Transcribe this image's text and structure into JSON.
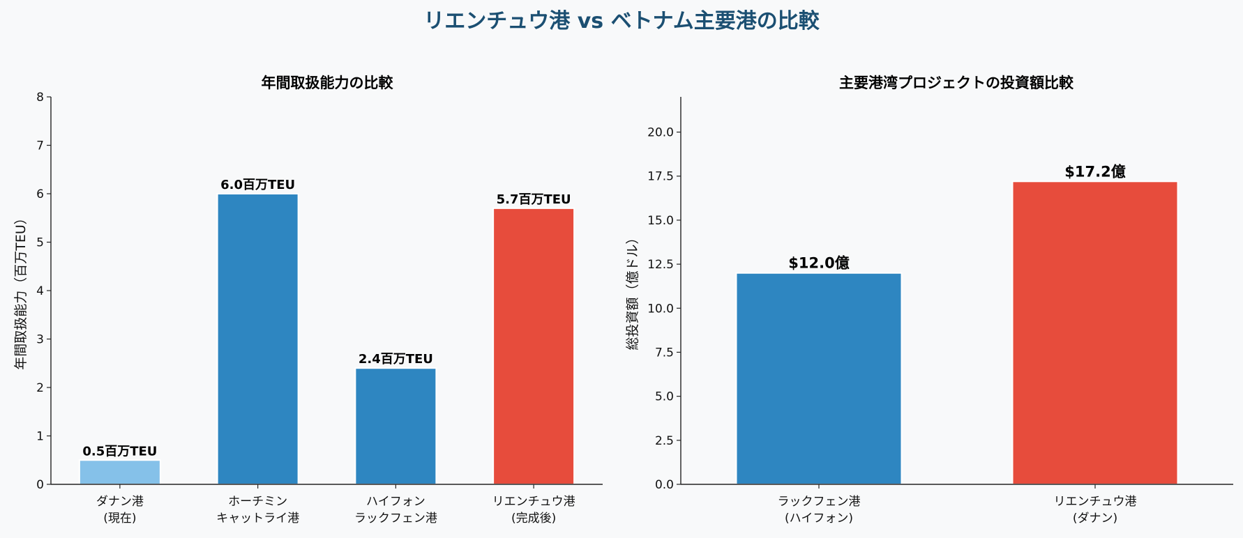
{
  "title": "リエンチュウ港 vs ベトナム主要港の比較",
  "colors": {
    "light_blue": "#85c1e9",
    "blue": "#2e86c1",
    "red": "#e74c3c",
    "title": "#1b4f72",
    "background": "#f8f9fa"
  },
  "chart_data": [
    {
      "type": "bar",
      "title": "年間取扱能力の比較",
      "xlabel": "",
      "ylabel": "年間取扱能力（百万TEU）",
      "categories": [
        "ダナン港\n(現在)",
        "ホーチミン\nキャットライ港",
        "ハイフォン\nラックフェン港",
        "リエンチュウ港\n(完成後)"
      ],
      "values": [
        0.5,
        6.0,
        2.4,
        5.7
      ],
      "data_labels": [
        "0.5百万TEU",
        "6.0百万TEU",
        "2.4百万TEU",
        "5.7百万TEU"
      ],
      "bar_colors": [
        "#85c1e9",
        "#2e86c1",
        "#2e86c1",
        "#e74c3c"
      ],
      "ylim": [
        0,
        8
      ],
      "yticks": [
        "0",
        "1",
        "2",
        "3",
        "4",
        "5",
        "6",
        "7",
        "8"
      ],
      "grid": false
    },
    {
      "type": "bar",
      "title": "主要港湾プロジェクトの投資額比較",
      "xlabel": "",
      "ylabel": "総投資額（億ドル）",
      "categories": [
        "ラックフェン港\n(ハイフォン)",
        "リエンチュウ港\n(ダナン)"
      ],
      "values": [
        12.0,
        17.2
      ],
      "data_labels": [
        "$12.0億",
        "$17.2億"
      ],
      "bar_colors": [
        "#2e86c1",
        "#e74c3c"
      ],
      "ylim": [
        0,
        22
      ],
      "yticks": [
        "0.0",
        "2.5",
        "5.0",
        "7.5",
        "10.0",
        "12.5",
        "15.0",
        "17.5",
        "20.0"
      ],
      "grid": false
    }
  ]
}
